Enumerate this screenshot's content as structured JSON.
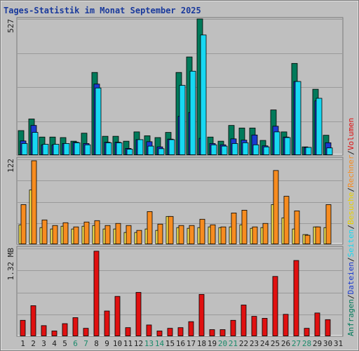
{
  "title": "Tages-Statistik im Monat September 2025",
  "colors": {
    "background": "#bfbfbf",
    "title": "#1a3a9c",
    "weekday": "#202020",
    "weekend": "#1a8a6a",
    "grid": "#9a9a9a",
    "requests": "#007a5a",
    "files": "#1a3ad0",
    "pages": "#17d8f2",
    "visits": "#ffee55",
    "hosts": "#f78c20",
    "volume": "#e01010"
  },
  "legend": [
    {
      "label": "Anfragen",
      "color": "#007a5a"
    },
    {
      "label": "/",
      "color": "#202020"
    },
    {
      "label": "Dateien",
      "color": "#1a3ad0"
    },
    {
      "label": "/",
      "color": "#202020"
    },
    {
      "label": "Seiten",
      "color": "#17d8f2"
    },
    {
      "label": "/",
      "color": "#202020"
    },
    {
      "label": "Besuche",
      "color": "#e8d200"
    },
    {
      "label": "/",
      "color": "#202020"
    },
    {
      "label": "Rechner",
      "color": "#f78c20"
    },
    {
      "label": "/",
      "color": "#202020"
    },
    {
      "label": "Volumen",
      "color": "#e01010"
    }
  ],
  "chart_data": {
    "type": "bar",
    "title": "Tages-Statistik im Monat September 2025",
    "categories": [
      "1",
      "2",
      "3",
      "4",
      "5",
      "6",
      "7",
      "8",
      "9",
      "10",
      "11",
      "12",
      "13",
      "14",
      "15",
      "16",
      "17",
      "18",
      "19",
      "20",
      "21",
      "22",
      "23",
      "24",
      "25",
      "26",
      "27",
      "28",
      "29",
      "30",
      "31"
    ],
    "weekend_days": [
      "6",
      "7",
      "13",
      "14",
      "20",
      "21",
      "27",
      "28"
    ],
    "panels": [
      {
        "id": "top",
        "ymax_label": "527",
        "ylim": [
          0,
          527
        ],
        "grid": true,
        "series": [
          {
            "name": "Anfragen",
            "values": [
              95,
              140,
              70,
              70,
              68,
              54,
              85,
              320,
              73,
              73,
              54,
              90,
              75,
              68,
              88,
              320,
              380,
              527,
              70,
              54,
              115,
              105,
              105,
              57,
              175,
              90,
              355,
              32,
              255,
              77,
              0
            ]
          },
          {
            "name": "Dateien",
            "values": [
              55,
              115,
              40,
              40,
              45,
              50,
              45,
              275,
              50,
              50,
              26,
              60,
              52,
              32,
              62,
              150,
              165,
              65,
              45,
              40,
              63,
              58,
              78,
              36,
              112,
              70,
              285,
              30,
              210,
              48,
              0
            ]
          },
          {
            "name": "Seiten",
            "values": [
              45,
              88,
              42,
              42,
              45,
              48,
              40,
              260,
              48,
              48,
              23,
              60,
              35,
              25,
              60,
              270,
              325,
              465,
              40,
              35,
              45,
              48,
              40,
              32,
              90,
              68,
              285,
              30,
              220,
              28,
              0
            ]
          }
        ]
      },
      {
        "id": "middle",
        "ymax_label": "122",
        "ylim": [
          0,
          122
        ],
        "grid": true,
        "series": [
          {
            "name": "Besuche",
            "values": [
              28,
              78,
              24,
              22,
              26,
              22,
              26,
              27,
              22,
              22,
              17,
              17,
              22,
              20,
              40,
              24,
              23,
              24,
              25,
              24,
              25,
              28,
              23,
              24,
              57,
              38,
              22,
              14,
              25,
              24,
              0
            ]
          },
          {
            "name": "Rechner",
            "values": [
              57,
              120,
              35,
              27,
              31,
              25,
              32,
              34,
              27,
              30,
              27,
              20,
              47,
              29,
              40,
              27,
              27,
              36,
              28,
              25,
              45,
              49,
              25,
              30,
              106,
              69,
              48,
              13,
              25,
              57,
              0
            ]
          }
        ]
      },
      {
        "id": "bottom",
        "ymax_label": "1.32 MB",
        "ylim": [
          0,
          1.32
        ],
        "unit": "MB",
        "grid": true,
        "series": [
          {
            "name": "Volumen",
            "values": [
              0.24,
              0.46,
              0.16,
              0.08,
              0.19,
              0.28,
              0.12,
              1.28,
              0.38,
              0.6,
              0.13,
              0.66,
              0.17,
              0.08,
              0.12,
              0.13,
              0.22,
              0.63,
              0.1,
              0.1,
              0.24,
              0.47,
              0.3,
              0.27,
              0.9,
              0.33,
              1.14,
              0.12,
              0.35,
              0.25,
              0
            ]
          }
        ]
      }
    ]
  }
}
